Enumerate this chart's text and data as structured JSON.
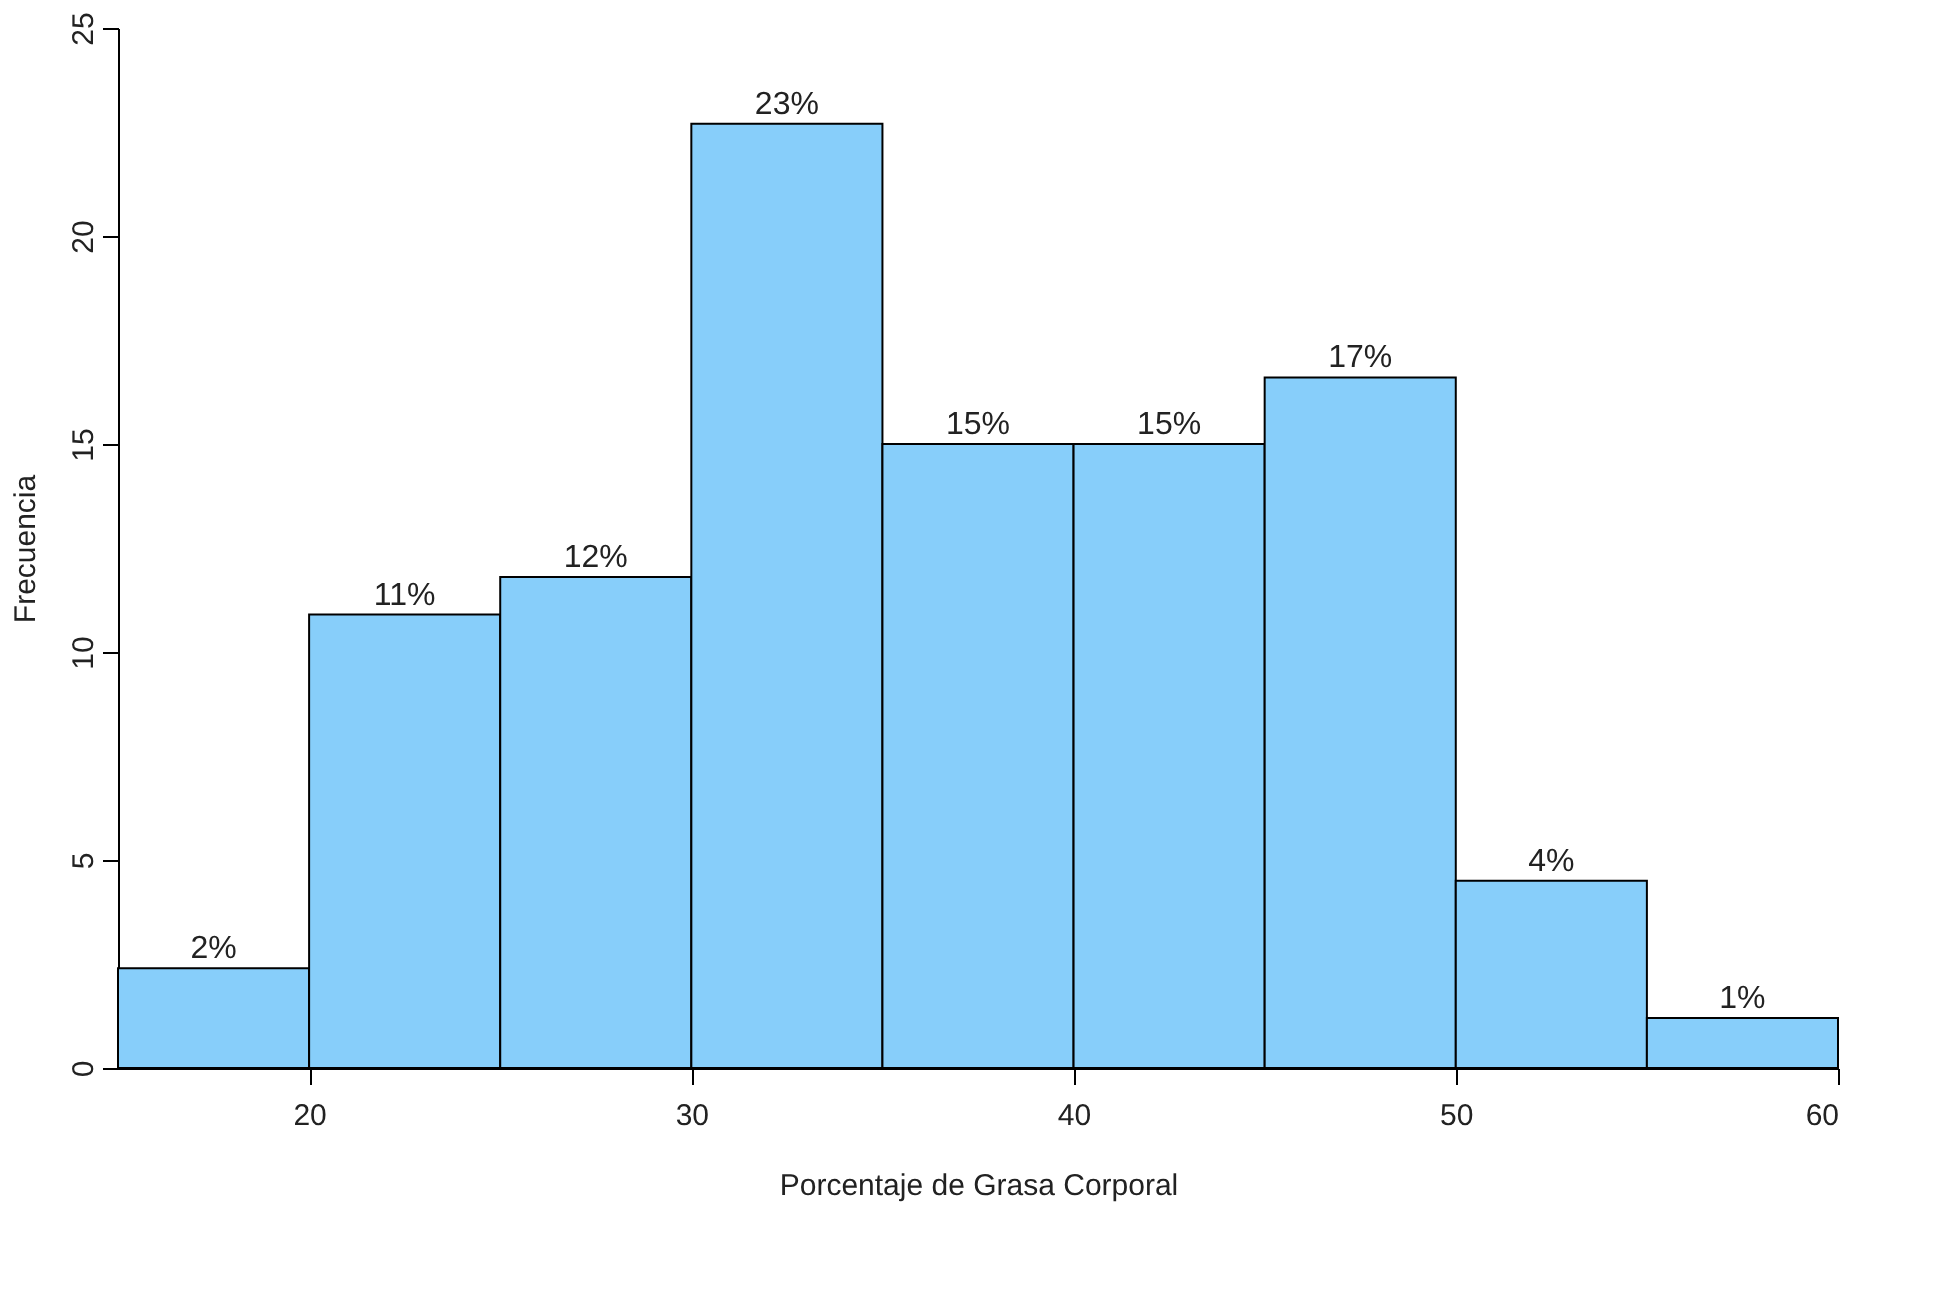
{
  "chart_data": {
    "type": "histogram",
    "xlabel": "Porcentaje de Grasa Corporal",
    "ylabel": "Frecuencia",
    "bins": [
      15,
      20,
      25,
      30,
      35,
      40,
      45,
      50,
      55,
      60
    ],
    "values": [
      2.4,
      10.9,
      11.8,
      22.7,
      15.0,
      15.0,
      16.6,
      4.5,
      1.2
    ],
    "value_labels": [
      "2%",
      "11%",
      "12%",
      "23%",
      "15%",
      "15%",
      "17%",
      "4%",
      "1%"
    ],
    "color": "#87cefa",
    "xlim": [
      15,
      60
    ],
    "xticks": [
      20,
      30,
      40,
      50,
      60
    ],
    "ylim": [
      0,
      25
    ],
    "yticks": [
      0,
      5,
      10,
      15,
      20,
      25
    ],
    "grid": false
  }
}
